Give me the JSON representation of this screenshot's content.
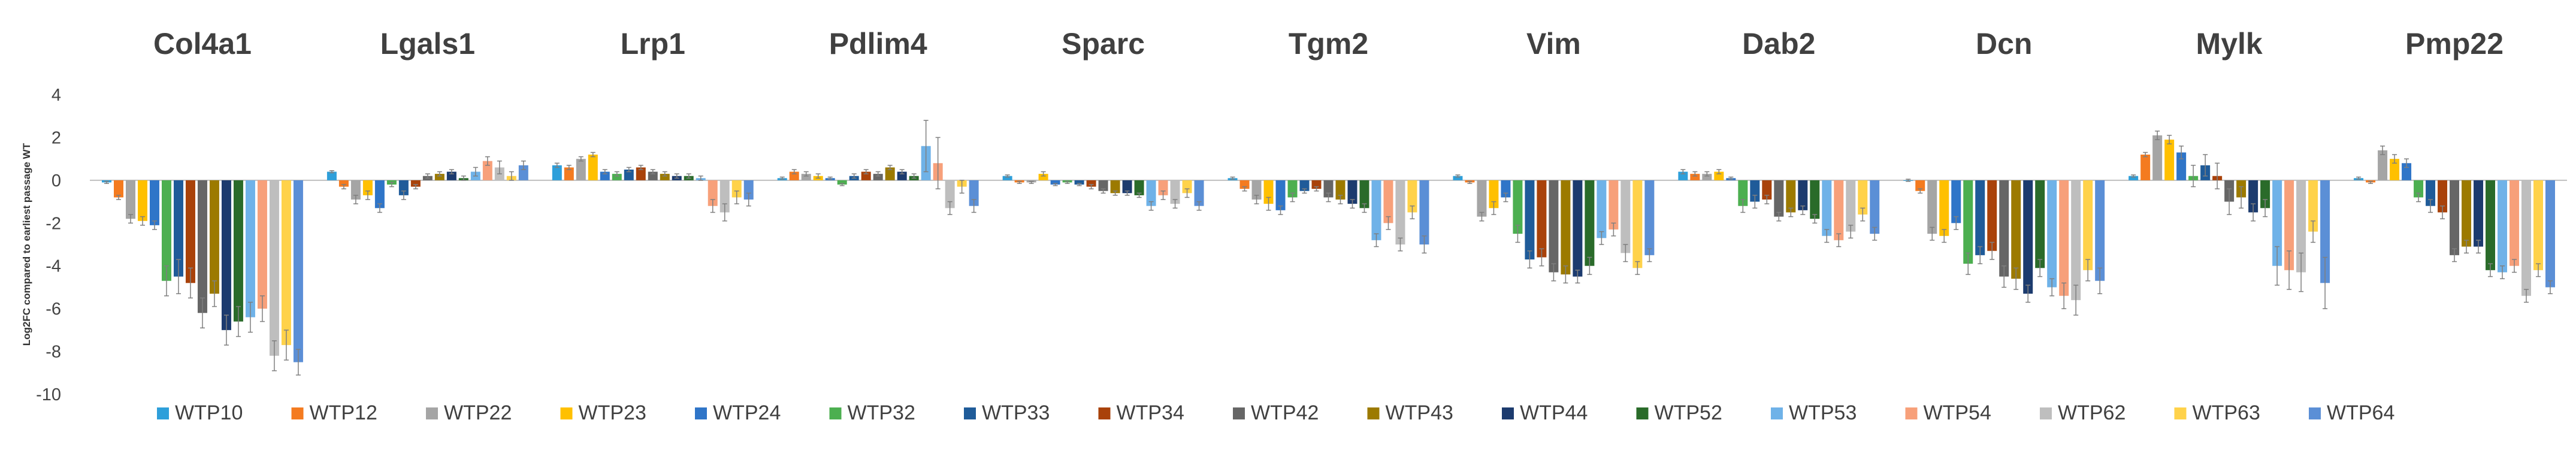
{
  "chart_data": {
    "type": "bar",
    "title": "",
    "xlabel": "",
    "ylabel": "Log2FC compared to earliest passage WT",
    "ylim": [
      -10,
      4
    ],
    "yticks": [
      4,
      2,
      0,
      -2,
      -4,
      -6,
      -8,
      -10
    ],
    "grid": false,
    "legend_position": "bottom",
    "categories": [
      "Col4a1",
      "Lgals1",
      "Lrp1",
      "Pdlim4",
      "Sparc",
      "Tgm2",
      "Vim",
      "Dab2",
      "Dcn",
      "Mylk",
      "Pmp22"
    ],
    "series_colors": [
      "#2E9FDA",
      "#F47B20",
      "#A5A5A5",
      "#FFC000",
      "#2F75C8",
      "#4CAF50",
      "#1F5B99",
      "#A9420A",
      "#666666",
      "#9C7A00",
      "#1C3B6E",
      "#2A6B2A",
      "#6FB2E8",
      "#F7A07A",
      "#BEBEBE",
      "#FFD24A",
      "#5B8FD6"
    ],
    "series": [
      {
        "name": "WTP10",
        "values": [
          -0.1,
          0.4,
          0.7,
          0.1,
          0.2,
          0.1,
          0.2,
          0.4,
          0.0,
          0.2,
          0.1
        ],
        "errors": [
          0.05,
          0.05,
          0.1,
          0.05,
          0.05,
          0.05,
          0.05,
          0.1,
          0.05,
          0.05,
          0.05
        ]
      },
      {
        "name": "WTP12",
        "values": [
          -0.8,
          -0.3,
          0.6,
          0.4,
          -0.1,
          -0.4,
          -0.1,
          0.3,
          -0.5,
          1.2,
          -0.1
        ],
        "errors": [
          0.1,
          0.1,
          0.1,
          0.1,
          0.05,
          0.1,
          0.05,
          0.1,
          0.1,
          0.1,
          0.05
        ]
      },
      {
        "name": "WTP22",
        "values": [
          -1.8,
          -0.9,
          1.0,
          0.3,
          -0.1,
          -0.9,
          -1.7,
          0.3,
          -2.5,
          2.1,
          1.4
        ],
        "errors": [
          0.2,
          0.2,
          0.1,
          0.1,
          0.05,
          0.2,
          0.2,
          0.1,
          0.3,
          0.2,
          0.2
        ]
      },
      {
        "name": "WTP23",
        "values": [
          -1.9,
          -0.7,
          1.2,
          0.2,
          0.3,
          -1.1,
          -1.3,
          0.4,
          -2.6,
          1.9,
          1.0
        ],
        "errors": [
          0.2,
          0.2,
          0.1,
          0.1,
          0.1,
          0.3,
          0.3,
          0.1,
          0.3,
          0.2,
          0.2
        ]
      },
      {
        "name": "WTP24",
        "values": [
          -2.1,
          -1.3,
          0.4,
          0.1,
          -0.2,
          -1.4,
          -0.8,
          0.1,
          -2.0,
          1.3,
          0.8
        ],
        "errors": [
          0.2,
          0.2,
          0.1,
          0.05,
          0.05,
          0.2,
          0.2,
          0.05,
          0.3,
          0.3,
          0.2
        ]
      },
      {
        "name": "WTP32",
        "values": [
          -4.7,
          -0.2,
          0.3,
          -0.2,
          -0.1,
          -0.8,
          -2.5,
          -1.2,
          -3.9,
          0.2,
          -0.8
        ],
        "errors": [
          0.7,
          0.1,
          0.1,
          0.05,
          0.05,
          0.2,
          0.4,
          0.3,
          0.5,
          0.5,
          0.2
        ]
      },
      {
        "name": "WTP33",
        "values": [
          -4.5,
          -0.7,
          0.5,
          0.2,
          -0.2,
          -0.5,
          -3.7,
          -1.0,
          -3.5,
          0.7,
          -1.2
        ],
        "errors": [
          0.8,
          0.2,
          0.1,
          0.1,
          0.05,
          0.1,
          0.4,
          0.3,
          0.4,
          0.5,
          0.3
        ]
      },
      {
        "name": "WTP34",
        "values": [
          -4.8,
          -0.3,
          0.6,
          0.4,
          -0.3,
          -0.4,
          -3.6,
          -0.9,
          -3.3,
          0.2,
          -1.5
        ],
        "errors": [
          0.7,
          0.1,
          0.1,
          0.1,
          0.1,
          0.1,
          0.4,
          0.2,
          0.4,
          0.6,
          0.3
        ]
      },
      {
        "name": "WTP42",
        "values": [
          -6.2,
          0.2,
          0.4,
          0.3,
          -0.5,
          -0.8,
          -4.3,
          -1.7,
          -4.5,
          -1.0,
          -3.5
        ],
        "errors": [
          0.7,
          0.1,
          0.1,
          0.1,
          0.1,
          0.2,
          0.4,
          0.2,
          0.5,
          0.6,
          0.3
        ]
      },
      {
        "name": "WTP43",
        "values": [
          -5.3,
          0.3,
          0.3,
          0.6,
          -0.6,
          -0.9,
          -4.4,
          -1.5,
          -4.6,
          -0.8,
          -3.1
        ],
        "errors": [
          0.6,
          0.1,
          0.1,
          0.1,
          0.1,
          0.2,
          0.4,
          0.2,
          0.5,
          0.5,
          0.3
        ]
      },
      {
        "name": "WTP44",
        "values": [
          -7.0,
          0.4,
          0.2,
          0.4,
          -0.6,
          -1.1,
          -4.5,
          -1.4,
          -5.3,
          -1.5,
          -3.1
        ],
        "errors": [
          0.7,
          0.1,
          0.1,
          0.1,
          0.1,
          0.2,
          0.3,
          0.2,
          0.4,
          0.4,
          0.3
        ]
      },
      {
        "name": "WTP52",
        "values": [
          -6.6,
          0.1,
          0.2,
          0.2,
          -0.7,
          -1.3,
          -4.0,
          -1.8,
          -4.1,
          -1.3,
          -4.2
        ],
        "errors": [
          0.7,
          0.1,
          0.1,
          0.1,
          0.1,
          0.2,
          0.4,
          0.2,
          0.4,
          0.4,
          0.3
        ]
      },
      {
        "name": "WTP53",
        "values": [
          -6.4,
          0.4,
          0.1,
          1.6,
          -1.2,
          -2.8,
          -2.7,
          -2.6,
          -5.0,
          -4.0,
          -4.3
        ],
        "errors": [
          0.7,
          0.2,
          0.1,
          1.2,
          0.2,
          0.3,
          0.3,
          0.3,
          0.4,
          0.9,
          0.3
        ]
      },
      {
        "name": "WTP54",
        "values": [
          -6.0,
          0.9,
          -1.2,
          0.8,
          -0.7,
          -2.0,
          -2.3,
          -2.8,
          -5.4,
          -4.2,
          -4.0
        ],
        "errors": [
          0.6,
          0.2,
          0.3,
          1.2,
          0.2,
          0.3,
          0.3,
          0.3,
          0.6,
          0.9,
          0.3
        ]
      },
      {
        "name": "WTP62",
        "values": [
          -8.2,
          0.6,
          -1.5,
          -1.3,
          -1.1,
          -3.0,
          -3.4,
          -2.4,
          -5.6,
          -4.3,
          -5.4
        ],
        "errors": [
          0.7,
          0.3,
          0.4,
          0.3,
          0.2,
          0.3,
          0.4,
          0.3,
          0.7,
          0.9,
          0.3
        ]
      },
      {
        "name": "WTP63",
        "values": [
          -7.7,
          0.2,
          -0.8,
          -0.3,
          -0.6,
          -1.5,
          -4.1,
          -1.6,
          -4.2,
          -2.4,
          -4.2
        ],
        "errors": [
          0.7,
          0.2,
          0.3,
          0.3,
          0.2,
          0.3,
          0.3,
          0.3,
          0.5,
          0.5,
          0.3
        ]
      },
      {
        "name": "WTP64",
        "values": [
          -8.5,
          0.7,
          -0.9,
          -1.2,
          -1.2,
          -3.0,
          -3.5,
          -2.5,
          -4.7,
          -4.8,
          -5.0
        ],
        "errors": [
          0.6,
          0.2,
          0.3,
          0.3,
          0.2,
          0.4,
          0.3,
          0.3,
          0.6,
          1.2,
          0.3
        ]
      }
    ]
  }
}
